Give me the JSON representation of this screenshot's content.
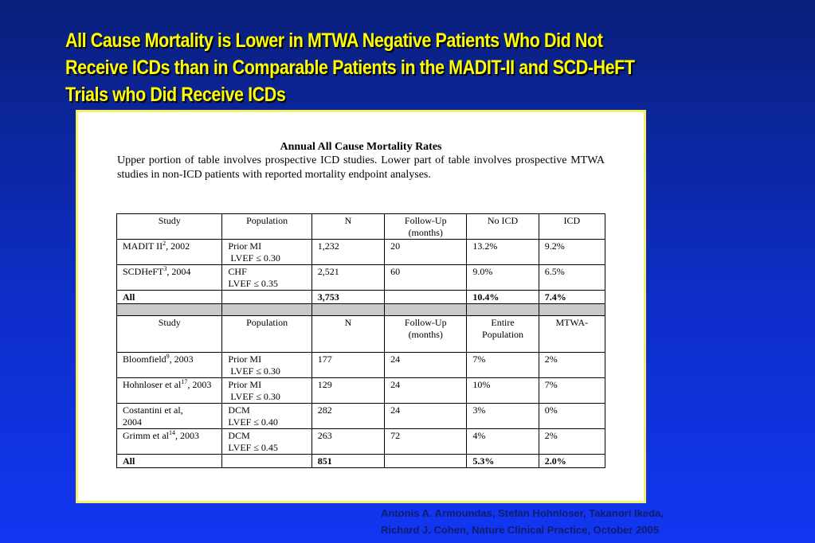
{
  "slide": {
    "title": "All Cause Mortality is Lower in MTWA Negative Patients Who Did Not Receive ICDs than in Comparable Patients in the MADIT-II and SCD-HeFT Trials who Did Receive ICDs",
    "credit_line1": "Antonis A. Armoundas, Stefan Hohnloser, Takanori Ikeda,",
    "credit_line2": "Richard J. Cohen, Nature Clinical Practice, October 2005"
  },
  "panel": {
    "title": "Annual All Cause Mortality Rates",
    "description": "Upper portion of table involves prospective ICD studies.  Lower part of table involves prospective MTWA studies in non-ICD patients with reported mortality endpoint analyses."
  },
  "upper": {
    "headers": [
      "Study",
      "Population",
      "N",
      "Follow-Up (months)",
      "No ICD",
      "ICD"
    ],
    "rows": [
      {
        "study": "MADIT II",
        "ref": "2",
        "year": ", 2002",
        "pop1": "Prior MI",
        "pop2": "LVEF ≤ 0.30",
        "n": "1,232",
        "fu": "20",
        "v1": "13.2%",
        "v2": "9.2%"
      },
      {
        "study": "SCDHeFT",
        "ref": "3",
        "year": ", 2004",
        "pop1": "CHF",
        "pop2": "LVEF ≤ 0.35",
        "n": "2,521",
        "fu": "60",
        "v1": "9.0%",
        "v2": "6.5%"
      }
    ],
    "total": {
      "label": "All",
      "n": "3,753",
      "v1": "10.4%",
      "v2": "7.4%"
    }
  },
  "lower": {
    "headers": [
      "Study",
      "Population",
      "N",
      "Follow-Up (months)",
      "Entire Population",
      "MTWA-"
    ],
    "rows": [
      {
        "study": "Bloomfield",
        "ref": "9",
        "year": ", 2003",
        "pop1": "Prior MI",
        "pop2": "LVEF ≤ 0.30",
        "n": "177",
        "fu": "24",
        "v1": "7%",
        "v2": "2%"
      },
      {
        "study": "Hohnloser et al",
        "ref": "17",
        "year": ", 2003",
        "pop1": "Prior MI",
        "pop2": "LVEF ≤ 0.30",
        "n": "129",
        "fu": "24",
        "v1": "10%",
        "v2": "7%"
      },
      {
        "study": "Costantini et al,",
        "ref": "",
        "year": "2004",
        "pop1": "DCM",
        "pop2": "LVEF ≤ 0.40",
        "n": "282",
        "fu": "24",
        "v1": "3%",
        "v2": "0%"
      },
      {
        "study": "Grimm et al",
        "ref": "14",
        "year": ", 2003",
        "pop1": "DCM",
        "pop2": "LVEF ≤ 0.45",
        "n": "263",
        "fu": "72",
        "v1": "4%",
        "v2": "2%"
      }
    ],
    "total": {
      "label": "All",
      "n": "851",
      "v1": "5.3%",
      "v2": "2.0%"
    }
  }
}
